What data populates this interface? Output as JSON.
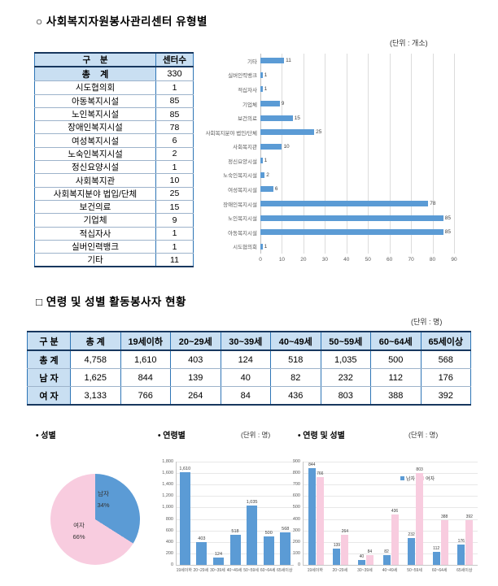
{
  "section1": {
    "title": "○ 사회복지자원봉사관리센터 유형별",
    "unit": "(단위 : 개소)"
  },
  "table1": {
    "col_headers": [
      "구    분",
      "센터수"
    ],
    "total": {
      "label": "총    계",
      "value": "330"
    },
    "rows": [
      [
        "시도협의회",
        "1"
      ],
      [
        "아동복지시설",
        "85"
      ],
      [
        "노인복지시설",
        "85"
      ],
      [
        "장애인복지시설",
        "78"
      ],
      [
        "여성복지시설",
        "6"
      ],
      [
        "노숙인복지시설",
        "2"
      ],
      [
        "정신요양시설",
        "1"
      ],
      [
        "사회복지관",
        "10"
      ],
      [
        "사회복지분야 법입/단체",
        "25"
      ],
      [
        "보건의료",
        "15"
      ],
      [
        "기업체",
        "9"
      ],
      [
        "적십자사",
        "1"
      ],
      [
        "실버인력뱅크",
        "1"
      ],
      [
        "기타",
        "11"
      ]
    ]
  },
  "section2": {
    "title": "□ 연령 및 성별 활동봉사자 현황",
    "unit": "(단위 : 명)"
  },
  "table2": {
    "col_headers": [
      "구 분",
      "총 계",
      "19세이하",
      "20~29세",
      "30~39세",
      "40~49세",
      "50~59세",
      "60~64세",
      "65세이상"
    ],
    "rows": [
      [
        "총 계",
        "4,758",
        "1,610",
        "403",
        "124",
        "518",
        "1,035",
        "500",
        "568"
      ],
      [
        "남 자",
        "1,625",
        "844",
        "139",
        "40",
        "82",
        "232",
        "112",
        "176"
      ],
      [
        "여 자",
        "3,133",
        "766",
        "264",
        "84",
        "436",
        "803",
        "388",
        "392"
      ]
    ]
  },
  "subcharts": {
    "gender_title": "• 성별",
    "age_title": "• 연령별",
    "age_unit": "(단위 : 명)",
    "agegender_title": "• 연령 및 성별",
    "agegender_unit": "(단위 : 명)"
  },
  "chart_data": [
    {
      "type": "bar",
      "orientation": "horizontal",
      "title": "사회복지자원봉사관리센터 유형별",
      "order": "top-to-bottom",
      "categories": [
        "기타",
        "실버인력뱅크",
        "적십자사",
        "기업체",
        "보건의료",
        "사회복지분야 법인/단체",
        "사회복지관",
        "정신요양시설",
        "노숙인복지시설",
        "여성복지시설",
        "장애인복지시설",
        "노인복지시설",
        "아동복지시설",
        "시도협의회"
      ],
      "values": [
        11,
        1,
        1,
        9,
        15,
        25,
        10,
        1,
        2,
        6,
        78,
        85,
        85,
        1
      ],
      "xlim": [
        0,
        90
      ],
      "xtick_step": 10,
      "bar_color": "#5B9BD5",
      "grid": true
    },
    {
      "type": "pie",
      "title": "성별",
      "labels": [
        "남자",
        "여자"
      ],
      "values": [
        34,
        66
      ],
      "pct_labels": [
        "34%",
        "66%"
      ],
      "colors": [
        "#5B9BD5",
        "#F8CCDF"
      ],
      "start_angle_deg": 0,
      "direction": "clockwise"
    },
    {
      "type": "bar",
      "title": "연령별",
      "categories": [
        "19세이하",
        "20~29세",
        "30~39세",
        "40~49세",
        "50~59세",
        "60~64세",
        "65세이상"
      ],
      "values": [
        1610,
        403,
        124,
        518,
        1035,
        500,
        568
      ],
      "value_labels": [
        "1,610",
        "403",
        "124",
        "518",
        "1,035",
        "500",
        "568"
      ],
      "ylim": [
        0,
        1800
      ],
      "ytick_step": 200,
      "bar_color": "#5B9BD5",
      "grid": true
    },
    {
      "type": "bar",
      "grouped": true,
      "title": "연령 및 성별",
      "categories": [
        "19세이하",
        "20~29세",
        "30~39세",
        "40~49세",
        "50~59세",
        "60~64세",
        "65세이상"
      ],
      "series": [
        {
          "name": "남자",
          "color": "#5B9BD5",
          "values": [
            844,
            139,
            40,
            82,
            232,
            112,
            176
          ],
          "value_labels": [
            "844",
            "139",
            "40",
            "82",
            "232",
            "112",
            "176"
          ]
        },
        {
          "name": "여자",
          "color": "#F8CCDF",
          "values": [
            766,
            264,
            84,
            436,
            803,
            388,
            392
          ],
          "value_labels": [
            "766",
            "264",
            "84",
            "436",
            "803",
            "388",
            "392"
          ]
        }
      ],
      "ylim": [
        0,
        900
      ],
      "ytick_step": 100,
      "legend_position": "top-right",
      "grid": true
    }
  ],
  "colors": {
    "bar_blue": "#5B9BD5",
    "pink": "#F8CCDF",
    "table_header_bg": "#C9DFF2",
    "border_navy": "#17375E",
    "border_blue": "#2E75B6"
  }
}
